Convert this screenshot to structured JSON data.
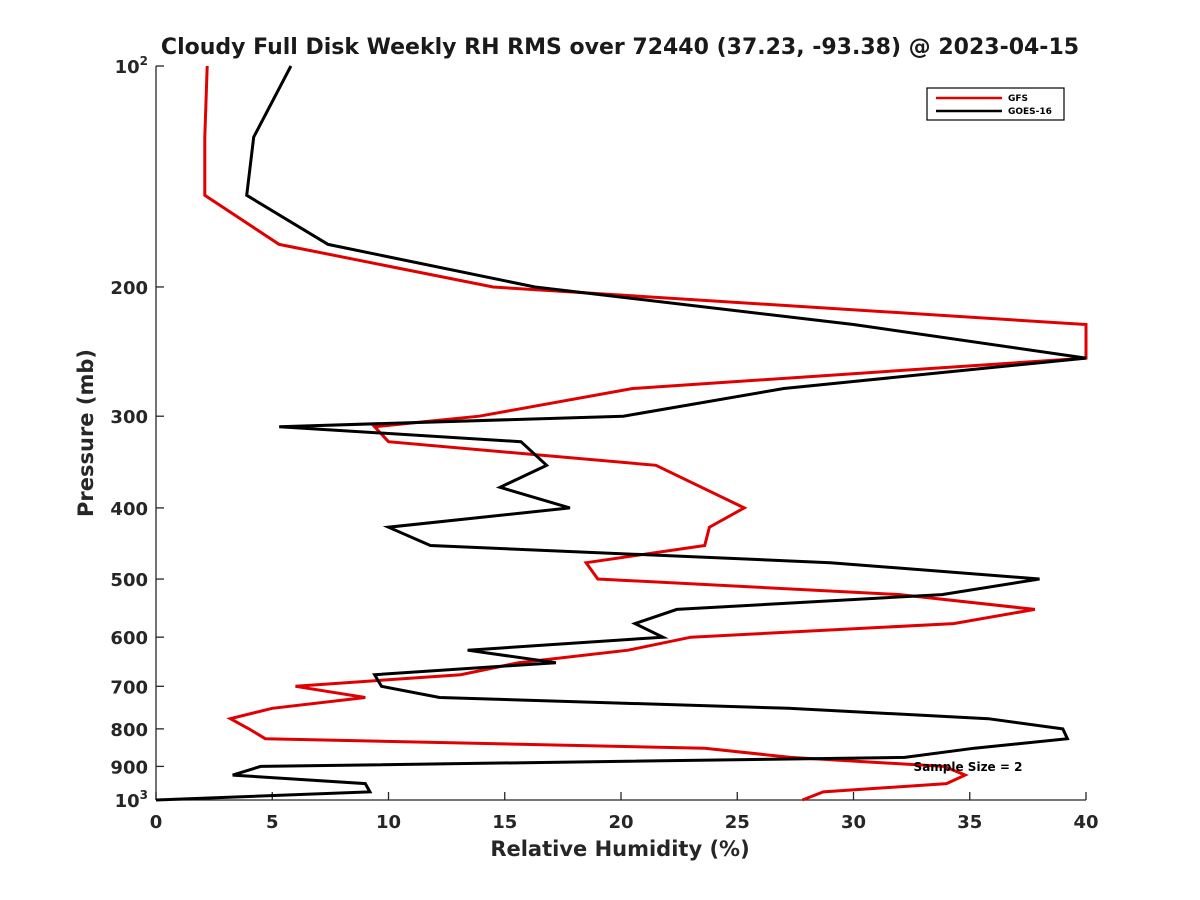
{
  "chart_data": {
    "type": "line",
    "title": "Cloudy Full Disk Weekly RH RMS over 72440 (37.23, -93.38) @ 2023-04-15",
    "xlabel": "Relative Humidity (%)",
    "ylabel": "Pressure (mb)",
    "xlim": [
      0,
      40
    ],
    "ylim": [
      100,
      1000
    ],
    "y_scale": "log",
    "y_reversed": true,
    "x_ticks": [
      "0",
      "5",
      "10",
      "15",
      "20",
      "25",
      "30",
      "35",
      "40"
    ],
    "y_ticks": [
      {
        "value": 100,
        "label": "10",
        "sup": "2"
      },
      {
        "value": 200,
        "label": "200",
        "sup": ""
      },
      {
        "value": 300,
        "label": "300",
        "sup": ""
      },
      {
        "value": 400,
        "label": "400",
        "sup": ""
      },
      {
        "value": 500,
        "label": "500",
        "sup": ""
      },
      {
        "value": 600,
        "label": "600",
        "sup": ""
      },
      {
        "value": 700,
        "label": "700",
        "sup": ""
      },
      {
        "value": 800,
        "label": "800",
        "sup": ""
      },
      {
        "value": 900,
        "label": "900",
        "sup": ""
      },
      {
        "value": 1000,
        "label": "10",
        "sup": "3"
      }
    ],
    "legend_position": "top-right",
    "annotation": "Sample Size = 2",
    "series": [
      {
        "name": "GFS",
        "color": "#e00000",
        "points": [
          [
            2.2,
            100
          ],
          [
            2.1,
            125
          ],
          [
            2.1,
            150
          ],
          [
            5.3,
            175
          ],
          [
            14.5,
            200
          ],
          [
            40,
            225
          ],
          [
            40,
            250
          ],
          [
            20.5,
            275
          ],
          [
            13.9,
            300
          ],
          [
            9.4,
            310
          ],
          [
            10.0,
            325
          ],
          [
            21.5,
            350
          ],
          [
            25.3,
            400
          ],
          [
            23.8,
            425
          ],
          [
            23.6,
            450
          ],
          [
            18.5,
            475
          ],
          [
            19.0,
            500
          ],
          [
            32,
            525
          ],
          [
            37.8,
            550
          ],
          [
            34.3,
            575
          ],
          [
            23.0,
            600
          ],
          [
            20.3,
            625
          ],
          [
            15.6,
            650
          ],
          [
            13.1,
            675
          ],
          [
            6.0,
            700
          ],
          [
            9.0,
            725
          ],
          [
            5.0,
            750
          ],
          [
            3.2,
            775
          ],
          [
            4.0,
            800
          ],
          [
            4.7,
            825
          ],
          [
            23.6,
            850
          ],
          [
            27.3,
            875
          ],
          [
            33.9,
            900
          ],
          [
            34.8,
            925
          ],
          [
            34.0,
            950
          ],
          [
            28.7,
            975
          ],
          [
            27.8,
            1000
          ]
        ]
      },
      {
        "name": "GOES-16",
        "color": "#000000",
        "points": [
          [
            5.8,
            100
          ],
          [
            4.2,
            125
          ],
          [
            3.9,
            150
          ],
          [
            7.4,
            175
          ],
          [
            16.3,
            200
          ],
          [
            30,
            225
          ],
          [
            40,
            250
          ],
          [
            27,
            275
          ],
          [
            20.1,
            300
          ],
          [
            5.3,
            310
          ],
          [
            15.7,
            325
          ],
          [
            16.8,
            350
          ],
          [
            14.8,
            375
          ],
          [
            17.8,
            400
          ],
          [
            10.0,
            425
          ],
          [
            11.8,
            450
          ],
          [
            29,
            475
          ],
          [
            38,
            500
          ],
          [
            33.8,
            525
          ],
          [
            22.4,
            550
          ],
          [
            20.6,
            575
          ],
          [
            21.8,
            600
          ],
          [
            13.4,
            625
          ],
          [
            17.2,
            650
          ],
          [
            9.4,
            675
          ],
          [
            9.7,
            700
          ],
          [
            12.2,
            725
          ],
          [
            27.2,
            750
          ],
          [
            35.8,
            775
          ],
          [
            39.0,
            800
          ],
          [
            39.2,
            825
          ],
          [
            35.2,
            850
          ],
          [
            32.2,
            875
          ],
          [
            4.5,
            900
          ],
          [
            3.3,
            925
          ],
          [
            9.0,
            950
          ],
          [
            9.2,
            975
          ],
          [
            0.0,
            1000
          ]
        ]
      }
    ]
  }
}
